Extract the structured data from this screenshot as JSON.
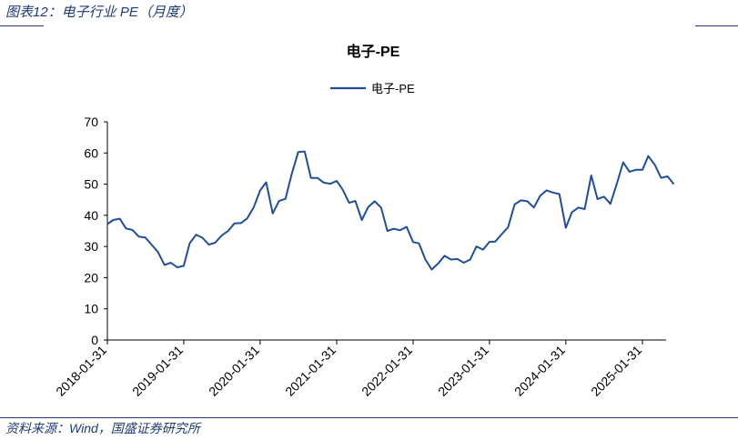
{
  "header": {
    "title": "图表12：电子行业 PE（月度）"
  },
  "footer": {
    "source": "资料来源：Wind，国盛证券研究所"
  },
  "colors": {
    "accent": "#1f3a7a",
    "line": "#1f4e9c"
  },
  "chart_data": {
    "type": "line",
    "title": "电子-PE",
    "xlabel": "",
    "ylabel": "",
    "ylim": [
      0,
      70
    ],
    "yticks": [
      0,
      10,
      20,
      30,
      40,
      50,
      60,
      70
    ],
    "xticks": [
      "2018-01-31",
      "2019-01-31",
      "2020-01-31",
      "2021-01-31",
      "2022-01-31",
      "2023-01-31",
      "2024-01-31",
      "2025-01-31"
    ],
    "legend": "top-center",
    "grid": false,
    "series": [
      {
        "name": "电子-PE",
        "x": [
          "2018-01-31",
          "2018-02-28",
          "2018-03-31",
          "2018-04-30",
          "2018-05-31",
          "2018-06-30",
          "2018-07-31",
          "2018-08-31",
          "2018-09-30",
          "2018-10-31",
          "2018-11-30",
          "2018-12-31",
          "2019-01-31",
          "2019-02-28",
          "2019-03-31",
          "2019-04-30",
          "2019-05-31",
          "2019-06-30",
          "2019-07-31",
          "2019-08-31",
          "2019-09-30",
          "2019-10-31",
          "2019-11-30",
          "2019-12-31",
          "2020-01-31",
          "2020-02-29",
          "2020-03-31",
          "2020-04-30",
          "2020-05-31",
          "2020-06-30",
          "2020-07-31",
          "2020-08-31",
          "2020-09-30",
          "2020-10-31",
          "2020-11-30",
          "2020-12-31",
          "2021-01-31",
          "2021-02-28",
          "2021-03-31",
          "2021-04-30",
          "2021-05-31",
          "2021-06-30",
          "2021-07-31",
          "2021-08-31",
          "2021-09-30",
          "2021-10-31",
          "2021-11-30",
          "2021-12-31",
          "2022-01-31",
          "2022-02-28",
          "2022-03-31",
          "2022-04-30",
          "2022-05-31",
          "2022-06-30",
          "2022-07-31",
          "2022-08-31",
          "2022-09-30",
          "2022-10-31",
          "2022-11-30",
          "2022-12-31",
          "2023-01-31",
          "2023-02-28",
          "2023-03-31",
          "2023-04-30",
          "2023-05-31",
          "2023-06-30",
          "2023-07-31",
          "2023-08-31",
          "2023-09-30",
          "2023-10-31",
          "2023-11-30",
          "2023-12-31",
          "2024-01-31",
          "2024-02-29",
          "2024-03-31",
          "2024-04-30",
          "2024-05-31",
          "2024-06-30",
          "2024-07-31",
          "2024-08-31",
          "2024-09-30",
          "2024-10-31",
          "2024-11-30",
          "2024-12-31",
          "2025-01-31",
          "2025-02-28",
          "2025-03-31",
          "2025-04-30",
          "2025-05-31",
          "2025-06-30"
        ],
        "values": [
          37.2,
          38.5,
          38.9,
          35.8,
          35.3,
          33.2,
          32.9,
          30.5,
          28.2,
          24.1,
          24.8,
          23.3,
          23.8,
          31.0,
          33.8,
          32.8,
          30.6,
          31.2,
          33.5,
          35.0,
          37.4,
          37.5,
          39.0,
          42.5,
          48.0,
          50.6,
          40.6,
          44.6,
          45.3,
          53.3,
          60.3,
          60.5,
          52.0,
          52.0,
          50.5,
          50.1,
          51.0,
          48.3,
          44.0,
          44.6,
          38.5,
          42.6,
          44.5,
          42.5,
          35.0,
          35.7,
          35.2,
          36.3,
          31.4,
          31.0,
          25.8,
          22.6,
          24.6,
          27.0,
          25.8,
          26.0,
          24.8,
          25.8,
          30.0,
          29.0,
          31.5,
          31.6,
          34.0,
          36.2,
          43.5,
          44.8,
          44.5,
          42.5,
          46.3,
          48.0,
          47.3,
          46.8,
          36.0,
          41.0,
          42.5,
          42.0,
          52.8,
          45.2,
          46.0,
          43.7,
          50.0,
          57.0,
          54.0,
          54.6,
          54.6,
          59.0,
          56.2,
          52.0,
          52.5,
          50.0
        ]
      }
    ]
  }
}
